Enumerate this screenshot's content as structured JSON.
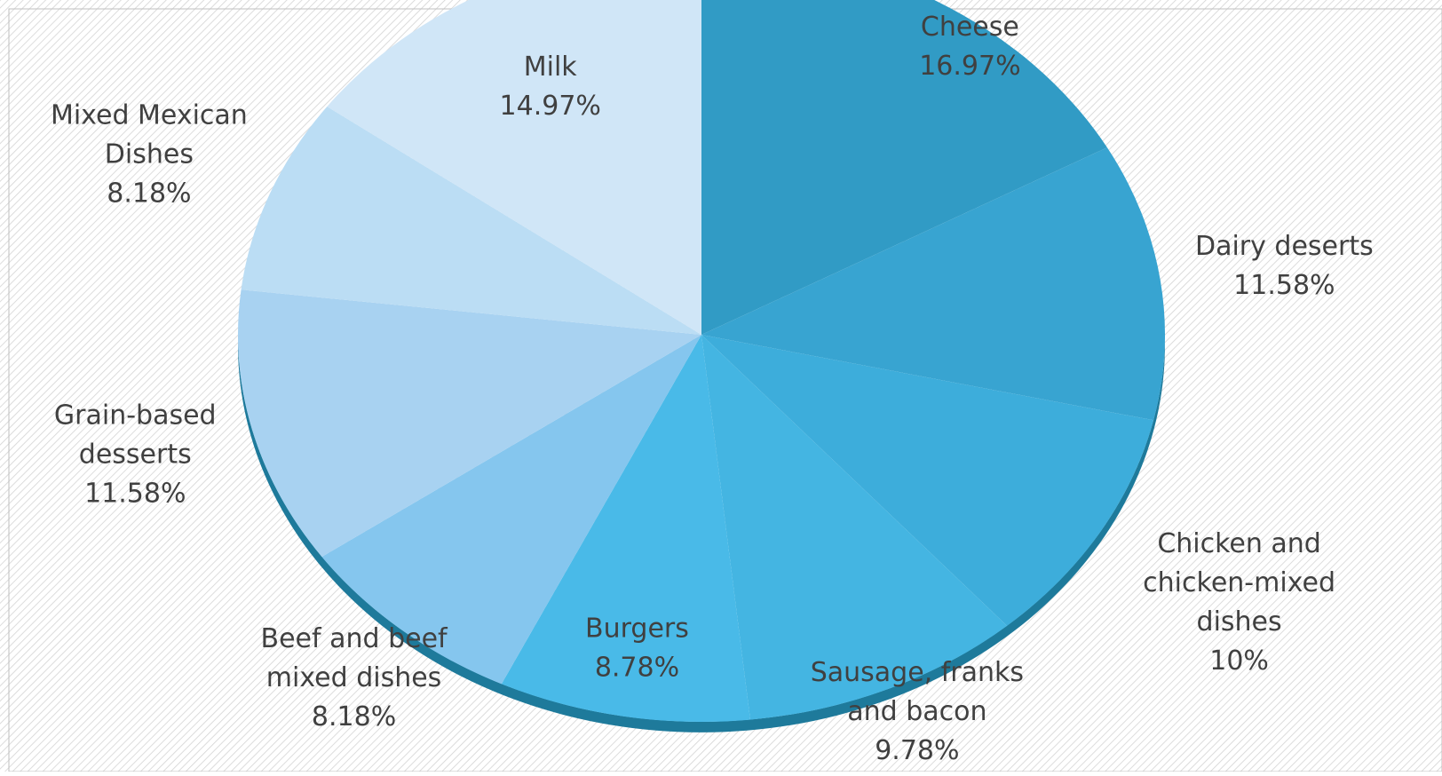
{
  "chart_data": {
    "type": "pie",
    "style": "3d-perspective",
    "background": "diagonal-hatch",
    "slices": [
      {
        "label_lines": [
          "Cheese"
        ],
        "pct_label": "16.97%",
        "value": 16.97,
        "color": "#319bc5"
      },
      {
        "label_lines": [
          "Dairy deserts"
        ],
        "pct_label": "11.58%",
        "value": 11.58,
        "color": "#38a4d1"
      },
      {
        "label_lines": [
          "Chicken and",
          "chicken-mixed",
          "dishes"
        ],
        "pct_label": "10%",
        "value": 10,
        "color": "#3daddb"
      },
      {
        "label_lines": [
          "Sausage, franks",
          "and bacon"
        ],
        "pct_label": "9.78%",
        "value": 9.78,
        "color": "#44b5e2"
      },
      {
        "label_lines": [
          "Burgers"
        ],
        "pct_label": "8.78%",
        "value": 8.78,
        "color": "#49bae8"
      },
      {
        "label_lines": [
          "Beef and beef",
          "mixed dishes"
        ],
        "pct_label": "8.18%",
        "value": 8.18,
        "color": "#85c6ee"
      },
      {
        "label_lines": [
          "Grain-based",
          "desserts"
        ],
        "pct_label": "11.58%",
        "value": 11.58,
        "color": "#a8d2f1"
      },
      {
        "label_lines": [
          "Mixed Mexican",
          "Dishes"
        ],
        "pct_label": "8.18%",
        "value": 8.18,
        "color": "#bbddf4"
      },
      {
        "label_lines": [
          "Milk"
        ],
        "pct_label": "14.97%",
        "value": 14.97,
        "color": "#d0e6f7"
      }
    ],
    "rim_color": "#1e7a9b",
    "hatch_color": "#d4d4d4"
  }
}
